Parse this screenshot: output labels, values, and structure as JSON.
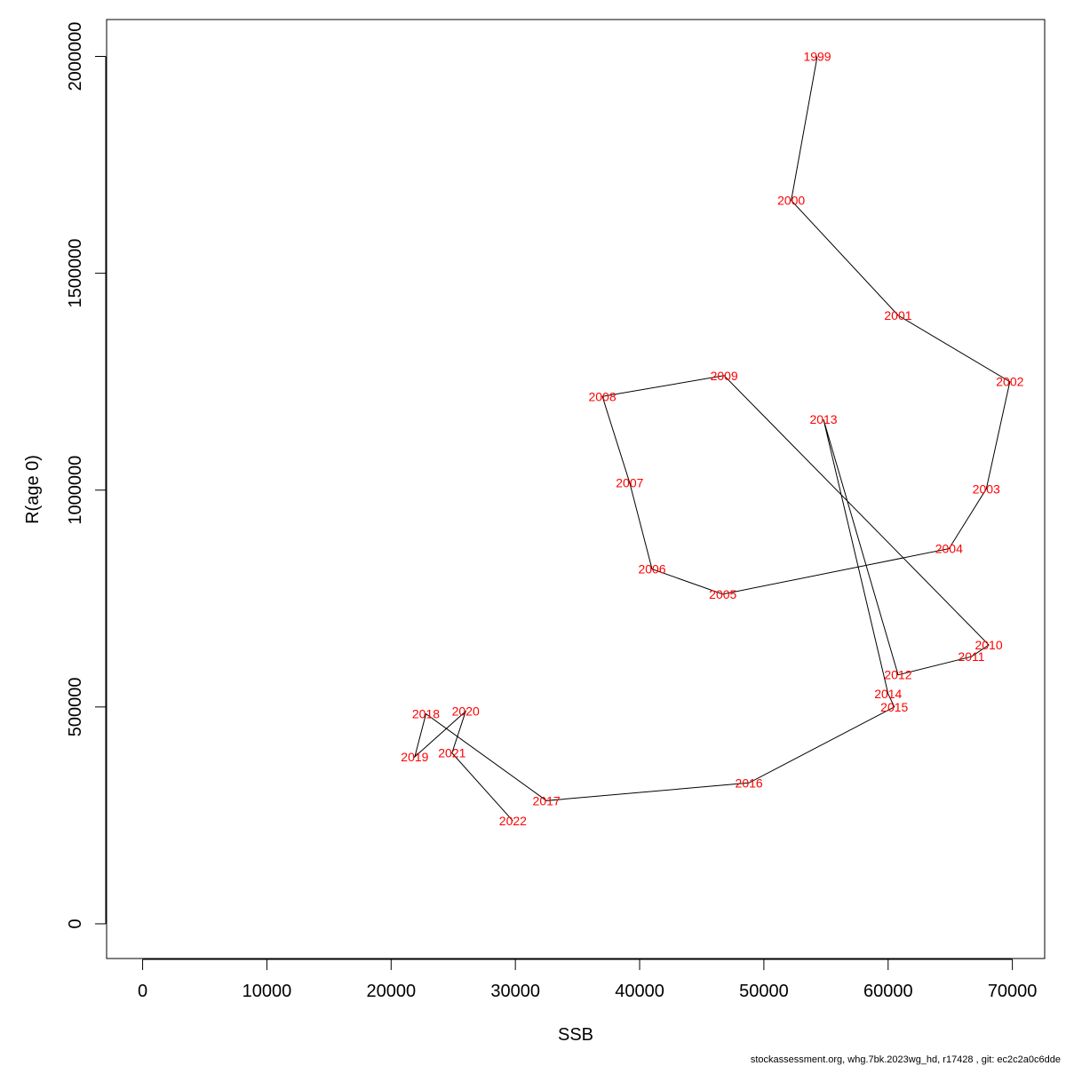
{
  "chart_data": {
    "type": "line",
    "xlabel": "SSB",
    "ylabel": "R(age 0)",
    "xlim": [
      -2900,
      72600
    ],
    "ylim": [
      -80000,
      2085000
    ],
    "x_ticks": [
      0,
      10000,
      20000,
      30000,
      40000,
      50000,
      60000,
      70000
    ],
    "x_tick_labels": [
      "0",
      "10000",
      "20000",
      "30000",
      "40000",
      "50000",
      "60000",
      "70000"
    ],
    "y_ticks": [
      0,
      500000,
      1000000,
      1500000,
      2000000
    ],
    "y_tick_labels": [
      "0",
      "500000",
      "1000000",
      "1500000",
      "2000000"
    ],
    "grid": false,
    "line_color": "#000000",
    "label_color": "#ff0000",
    "points": [
      {
        "year": "1999",
        "x": 54300,
        "y": 2000000
      },
      {
        "year": "2000",
        "x": 52200,
        "y": 1668000
      },
      {
        "year": "2001",
        "x": 60800,
        "y": 1403000
      },
      {
        "year": "2002",
        "x": 69800,
        "y": 1250000
      },
      {
        "year": "2003",
        "x": 67900,
        "y": 1003000
      },
      {
        "year": "2004",
        "x": 64900,
        "y": 865000
      },
      {
        "year": "2005",
        "x": 46700,
        "y": 760000
      },
      {
        "year": "2006",
        "x": 41000,
        "y": 818000
      },
      {
        "year": "2007",
        "x": 39200,
        "y": 1017000
      },
      {
        "year": "2008",
        "x": 37000,
        "y": 1216000
      },
      {
        "year": "2009",
        "x": 46800,
        "y": 1264000
      },
      {
        "year": "2010",
        "x": 68100,
        "y": 643000
      },
      {
        "year": "2011",
        "x": 66700,
        "y": 616000
      },
      {
        "year": "2012",
        "x": 60800,
        "y": 574000
      },
      {
        "year": "2013",
        "x": 54800,
        "y": 1163000
      },
      {
        "year": "2014",
        "x": 60000,
        "y": 530000
      },
      {
        "year": "2015",
        "x": 60500,
        "y": 500000
      },
      {
        "year": "2016",
        "x": 48800,
        "y": 325000
      },
      {
        "year": "2017",
        "x": 32500,
        "y": 284000
      },
      {
        "year": "2018",
        "x": 22800,
        "y": 484000
      },
      {
        "year": "2019",
        "x": 21900,
        "y": 385000
      },
      {
        "year": "2020",
        "x": 26000,
        "y": 490000
      },
      {
        "year": "2021",
        "x": 24900,
        "y": 394000
      },
      {
        "year": "2022",
        "x": 29800,
        "y": 237000
      }
    ]
  },
  "footer": "stockassessment.org, whg.7bk.2023wg_hd, r17428 , git: ec2c2a0c6dde"
}
